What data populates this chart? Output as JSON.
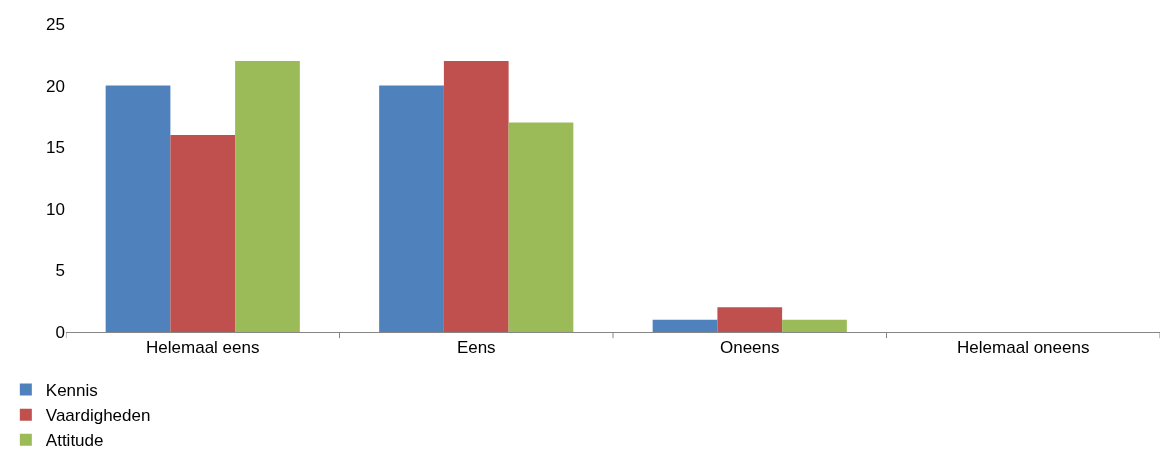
{
  "chart_data": {
    "type": "bar",
    "categories": [
      "Helemaal eens",
      "Eens",
      "Oneens",
      "Helemaal oneens"
    ],
    "series": [
      {
        "name": "Kennis",
        "color": "#4f81bd",
        "values": [
          20,
          20,
          1,
          0
        ]
      },
      {
        "name": "Vaardigheden",
        "color": "#c0504d",
        "values": [
          16,
          22,
          2,
          0
        ]
      },
      {
        "name": "Attitude",
        "color": "#9bbb59",
        "values": [
          22,
          17,
          1,
          0
        ]
      }
    ],
    "ylim": [
      0,
      25
    ],
    "yticks": [
      0,
      5,
      10,
      15,
      20,
      25
    ],
    "legend": "bottom left"
  }
}
